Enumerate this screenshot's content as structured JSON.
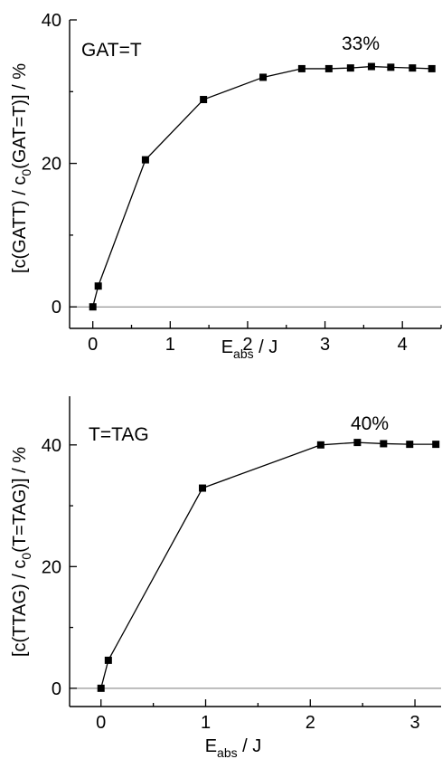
{
  "chart_data": [
    {
      "type": "line",
      "annotations": {
        "label": "GAT=T",
        "percent": "33%"
      },
      "xlabel": {
        "main": "E",
        "sub": "abs",
        "unit": " / J"
      },
      "ylabel": {
        "a": "[c(GATT) / c",
        "sub": "0",
        "b": "(GAT=T)] / %"
      },
      "xlim": [
        -0.3,
        4.5
      ],
      "ylim": [
        -3,
        40
      ],
      "xticks": [
        0,
        1,
        2,
        3,
        4
      ],
      "yticks": [
        0,
        20,
        40
      ],
      "zero_line": true,
      "series": [
        {
          "x": [
            0,
            0.07,
            0.68,
            1.43,
            2.2,
            2.7,
            3.05,
            3.33,
            3.6,
            3.85,
            4.13,
            4.38
          ],
          "y": [
            0,
            2.9,
            20.5,
            28.9,
            32.0,
            33.2,
            33.2,
            33.3,
            33.5,
            33.4,
            33.3,
            33.2
          ]
        }
      ]
    },
    {
      "type": "line",
      "annotations": {
        "label": "T=TAG",
        "percent": "40%"
      },
      "xlabel": {
        "main": "E",
        "sub": "abs",
        "unit": " / J"
      },
      "ylabel": {
        "a": "[c(TTAG) / c",
        "sub": "0",
        "b": "(T=TAG)] / %"
      },
      "xlim": [
        -0.3,
        3.25
      ],
      "ylim": [
        -3,
        48
      ],
      "xticks": [
        0,
        1,
        2,
        3
      ],
      "yticks": [
        0,
        20,
        40
      ],
      "zero_line": true,
      "series": [
        {
          "x": [
            0,
            0.07,
            0.97,
            2.1,
            2.45,
            2.7,
            2.95,
            3.2
          ],
          "y": [
            0,
            4.6,
            32.9,
            40.0,
            40.4,
            40.2,
            40.1,
            40.1
          ]
        }
      ]
    }
  ]
}
